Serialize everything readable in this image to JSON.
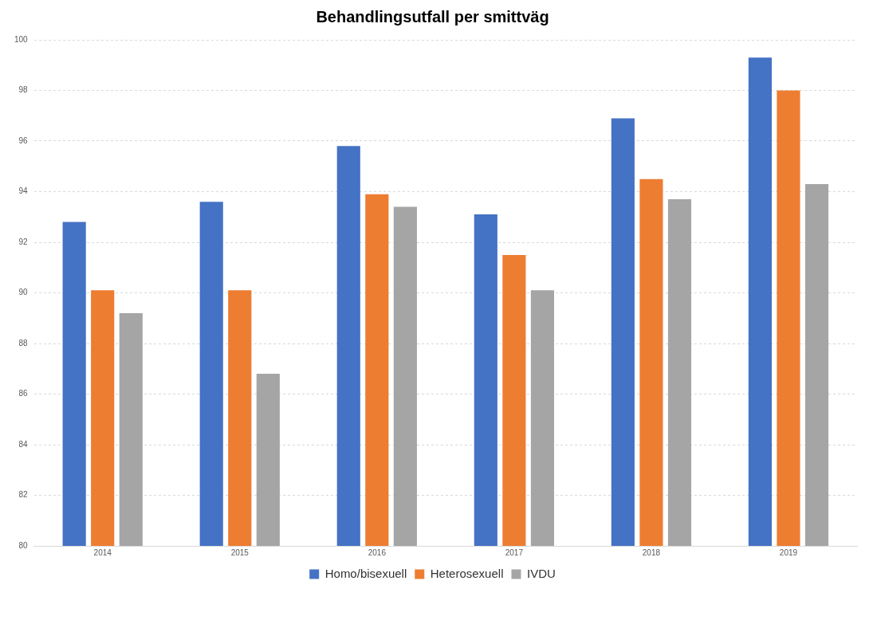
{
  "chart_data": {
    "type": "bar",
    "title": "Behandlingsutfall per smittväg",
    "categories": [
      "2014",
      "2015",
      "2016",
      "2017",
      "2018",
      "2019"
    ],
    "series": [
      {
        "name": "Homo/bisexuell",
        "color": "#4472c4",
        "values": [
          92.8,
          93.6,
          95.8,
          93.1,
          96.9,
          99.3
        ]
      },
      {
        "name": "Heterosexuell",
        "color": "#ed7d31",
        "values": [
          90.1,
          90.1,
          93.9,
          91.5,
          94.5,
          98.0
        ]
      },
      {
        "name": "IVDU",
        "color": "#a5a5a5",
        "values": [
          89.2,
          86.8,
          93.4,
          90.1,
          93.7,
          94.3
        ]
      }
    ],
    "ylim": [
      80,
      100
    ],
    "yticks": [
      80,
      82,
      84,
      86,
      88,
      90,
      92,
      94,
      96,
      98,
      100
    ],
    "grid": "y",
    "legend": "bottom"
  }
}
